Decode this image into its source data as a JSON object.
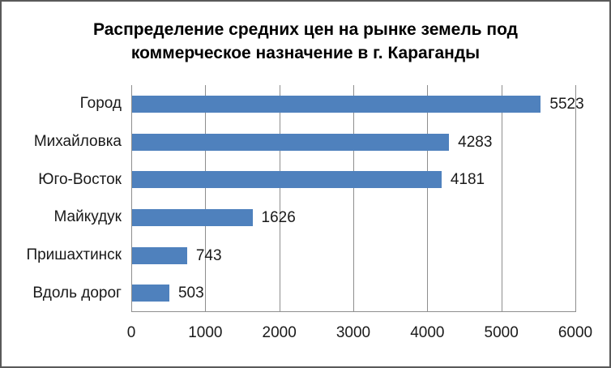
{
  "chart_data": {
    "type": "bar",
    "orientation": "horizontal",
    "title": "Распределение средних цен на рынке земель под коммерческое назначение в г. Караганды",
    "title_line1": "Распределение средних цен на рынке земель под",
    "title_line2": "коммерческое назначение в г. Караганды",
    "categories": [
      "Город",
      "Михайловка",
      "Юго-Восток",
      "Майкудук",
      "Пришахтинск",
      "Вдоль дорог"
    ],
    "values": [
      5523,
      4283,
      4181,
      1626,
      743,
      503
    ],
    "data_labels": [
      "5523",
      "4283",
      "4181",
      "1626",
      "743",
      "503"
    ],
    "x_ticks": [
      "0",
      "1000",
      "2000",
      "3000",
      "4000",
      "5000",
      "6000"
    ],
    "xlim": [
      0,
      6000
    ],
    "xlabel": "",
    "ylabel": "",
    "grid": "vertical-gridlines-on",
    "legend": "none",
    "bar_color": "#4f81bd",
    "gridline_color": "#8e8e8e",
    "text_color": "#1a1a1a",
    "frame_border_color": "#595959"
  }
}
